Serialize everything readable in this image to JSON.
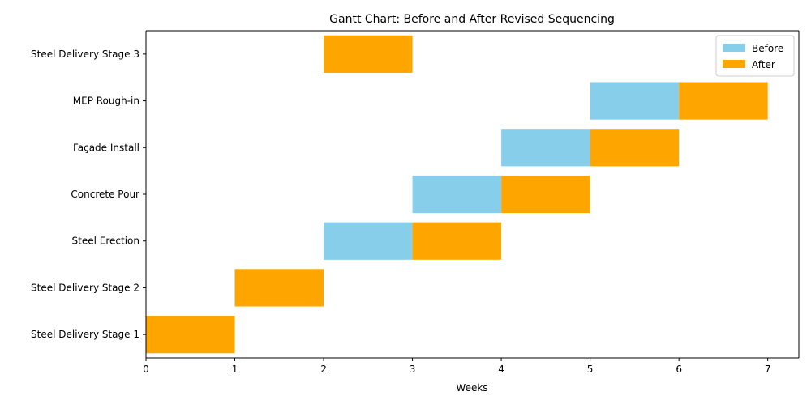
{
  "chart_data": {
    "type": "bar",
    "orientation": "horizontal",
    "stacking": "overlay",
    "title": "Gantt Chart: Before and After Revised Sequencing",
    "xlabel": "Weeks",
    "ylabel": "",
    "xlim": [
      0,
      7.35
    ],
    "x_ticks": [
      0,
      1,
      2,
      3,
      4,
      5,
      6,
      7
    ],
    "grid": false,
    "legend_position": "top-right",
    "categories": [
      "Steel Delivery Stage 1",
      "Steel Delivery Stage 2",
      "Steel Erection",
      "Concrete Pour",
      "Façade Install",
      "MEP Rough-in",
      "Steel Delivery Stage 3"
    ],
    "series": [
      {
        "name": "Before",
        "color": "#87CEEB",
        "tasks": [
          {
            "category": "Steel Delivery Stage 1",
            "start": 0,
            "end": 1
          },
          {
            "category": "Steel Delivery Stage 2",
            "start": 1,
            "end": 2
          },
          {
            "category": "Steel Erection",
            "start": 2,
            "end": 3
          },
          {
            "category": "Concrete Pour",
            "start": 3,
            "end": 4
          },
          {
            "category": "Façade Install",
            "start": 4,
            "end": 5
          },
          {
            "category": "MEP Rough-in",
            "start": 5,
            "end": 6
          }
        ]
      },
      {
        "name": "After",
        "color": "#FFA500",
        "tasks": [
          {
            "category": "Steel Delivery Stage 1",
            "start": 0,
            "end": 1
          },
          {
            "category": "Steel Delivery Stage 2",
            "start": 1,
            "end": 2
          },
          {
            "category": "Steel Delivery Stage 3",
            "start": 2,
            "end": 3
          },
          {
            "category": "Steel Erection",
            "start": 3,
            "end": 4
          },
          {
            "category": "Concrete Pour",
            "start": 4,
            "end": 5
          },
          {
            "category": "Façade Install",
            "start": 5,
            "end": 6
          },
          {
            "category": "MEP Rough-in",
            "start": 6,
            "end": 7
          }
        ]
      }
    ]
  }
}
